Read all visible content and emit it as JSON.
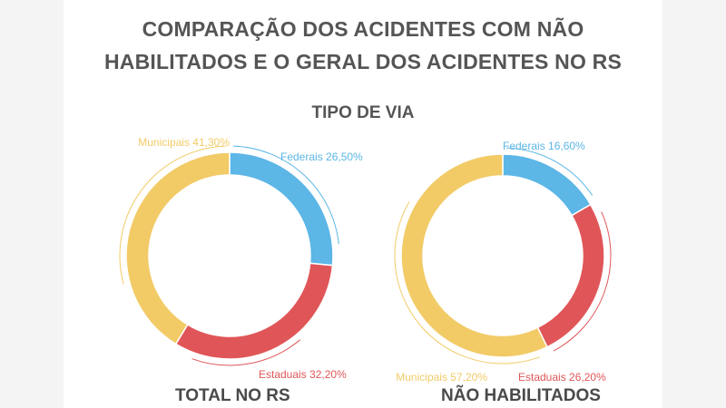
{
  "title": {
    "line1": "COMPARAÇÃO DOS ACIDENTES COM NÃO",
    "line2": "HABILITADOS E O GERAL DOS ACIDENTES NO RS"
  },
  "subtitle": "TIPO DE VIA",
  "colors": {
    "federais": "#5cb6e6",
    "estaduais": "#e05658",
    "municipais": "#f2cb67",
    "text": "#555555"
  },
  "chart_data": [
    {
      "type": "pie",
      "style": "donut",
      "caption": "TOTAL NO RS",
      "slices": [
        {
          "name": "Federais",
          "value": 26.5,
          "label": "Federais 26,50%",
          "color": "#5cb6e6"
        },
        {
          "name": "Estaduais",
          "value": 32.2,
          "label": "Estaduais 32,20%",
          "color": "#e05658"
        },
        {
          "name": "Municipais",
          "value": 41.3,
          "label": "Municipais 41,30%",
          "color": "#f2cb67"
        }
      ]
    },
    {
      "type": "pie",
      "style": "donut",
      "caption": "NÃO HABILITADOS",
      "slices": [
        {
          "name": "Federais",
          "value": 16.6,
          "label": "Federais 16,60%",
          "color": "#5cb6e6"
        },
        {
          "name": "Estaduais",
          "value": 26.2,
          "label": "Estaduais 26,20%",
          "color": "#e05658"
        },
        {
          "name": "Municipais",
          "value": 57.2,
          "label": "Municipais 57,20%",
          "color": "#f2cb67"
        }
      ]
    }
  ]
}
